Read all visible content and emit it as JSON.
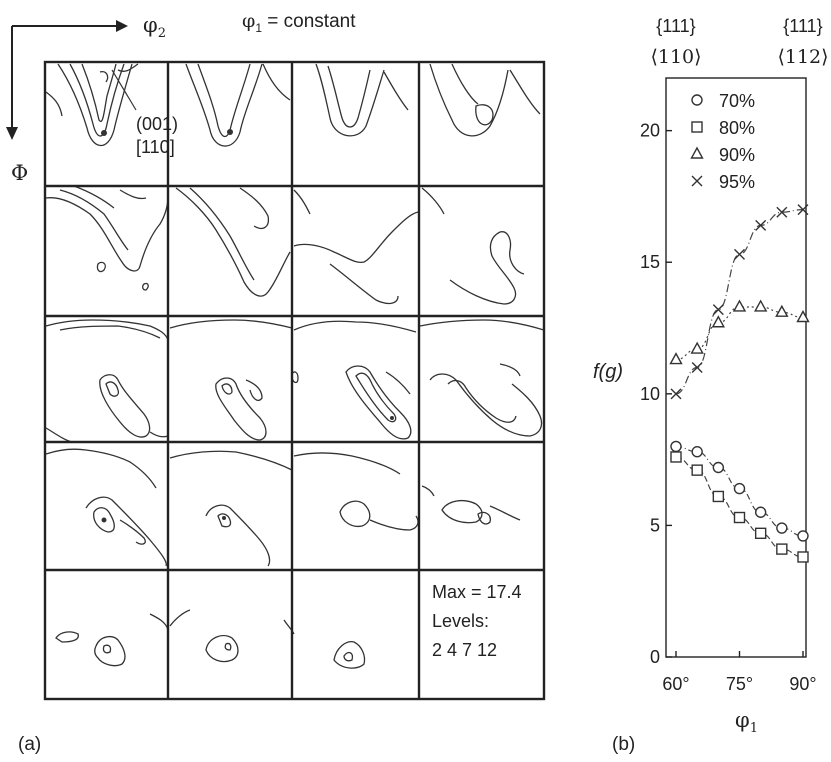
{
  "panel_a": {
    "label": "(a)",
    "phi2_label": "φ",
    "phi2_sub": "2",
    "phi1_const_label": "φ",
    "phi1_const_sub": "1",
    "phi1_const_rest": " = constant",
    "Phi_label": "Φ",
    "annotation_line1": "(001)",
    "annotation_line2": "[110]",
    "max_label": "Max = 17.4",
    "levels_label": "Levels:",
    "levels_values": "2 4 7 12",
    "grid": {
      "rows": 5,
      "cols": 4
    }
  },
  "chart_data": {
    "type": "line",
    "panel_label": "(b)",
    "title": "",
    "top_labels": [
      {
        "line1": "{111}",
        "line2": "⟨110⟩"
      },
      {
        "line1": "{111}",
        "line2": "⟨112⟩"
      }
    ],
    "xlabel": "φ",
    "xlabel_sub": "1",
    "ylabel": "f(g)",
    "xlim": [
      60,
      90
    ],
    "ylim": [
      0,
      22
    ],
    "xticks": [
      60,
      75,
      90
    ],
    "xtick_labels": [
      "60°",
      "75°",
      "90°"
    ],
    "yticks": [
      0,
      5,
      10,
      15,
      20
    ],
    "ytick_labels": [
      "0",
      "5",
      "10",
      "15",
      "20"
    ],
    "legend_position": "top-right",
    "series": [
      {
        "name": "70%",
        "marker": "circle",
        "x": [
          60,
          65,
          70,
          75,
          80,
          85,
          90
        ],
        "y": [
          8.0,
          7.8,
          7.2,
          6.4,
          5.5,
          4.9,
          4.6
        ]
      },
      {
        "name": "80%",
        "marker": "square",
        "x": [
          60,
          65,
          70,
          75,
          80,
          85,
          90
        ],
        "y": [
          7.6,
          7.1,
          6.1,
          5.3,
          4.7,
          4.1,
          3.8
        ]
      },
      {
        "name": "90%",
        "marker": "triangle",
        "x": [
          60,
          65,
          70,
          75,
          80,
          85,
          90
        ],
        "y": [
          11.3,
          11.7,
          12.7,
          13.3,
          13.3,
          13.1,
          12.9
        ]
      },
      {
        "name": "95%",
        "marker": "cross",
        "x": [
          60,
          65,
          70,
          75,
          80,
          85,
          90
        ],
        "y": [
          10.0,
          11.0,
          13.2,
          15.3,
          16.4,
          16.9,
          17.0
        ]
      }
    ]
  }
}
